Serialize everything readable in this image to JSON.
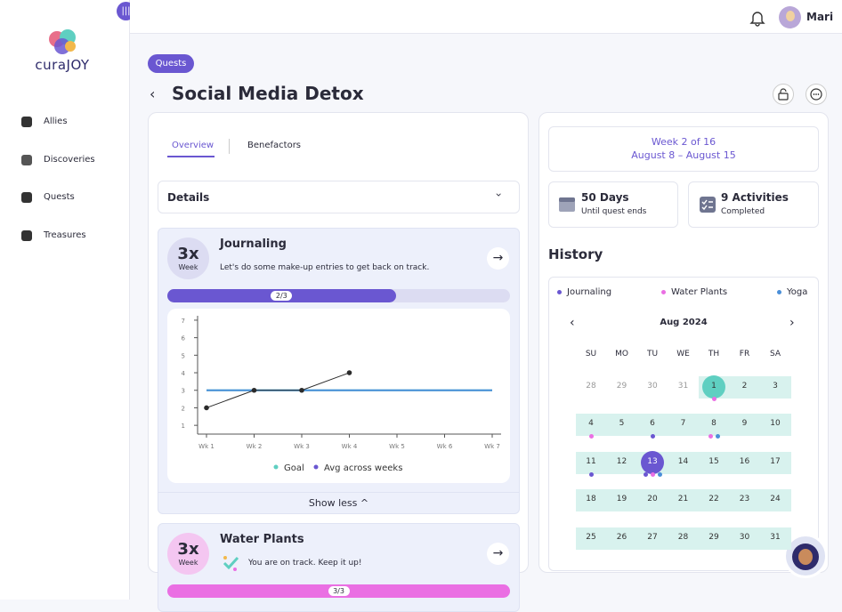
{
  "sidebar": {
    "logo": "curaJOY",
    "nav": [
      "Allies",
      "Discoveries",
      "Quests",
      "Treasures"
    ]
  },
  "header": {
    "user": "Mari"
  },
  "badge": "Quests",
  "title": "Social Media Detox",
  "tabs": [
    "Overview",
    "Benefactors"
  ],
  "details": "Details",
  "quests": [
    {
      "freq": "3x",
      "unit": "Week",
      "name": "Journaling",
      "message": "Let's do some make-up entries to get back on track.",
      "progress": {
        "done": 2,
        "total": 3,
        "label": "2/3"
      },
      "color": "#6a57d1",
      "circle": "#dcdcf2"
    },
    {
      "freq": "3x",
      "unit": "Week",
      "name": "Water Plants",
      "message": "You are on track. Keep it up!",
      "progress": {
        "done": 3,
        "total": 3,
        "label": "3/3"
      },
      "color": "#ea6fe3",
      "circle": "#f4c6f1"
    }
  ],
  "chart": {
    "type": "line",
    "categories": [
      "Wk 1",
      "Wk 2",
      "Wk 3",
      "Wk 4",
      "Wk 5",
      "Wk 6",
      "Wk 7"
    ],
    "entries": [
      2,
      3,
      3,
      4,
      null,
      null,
      null
    ],
    "entries_color": "#2b2b2b",
    "series": [
      {
        "name": "Goal",
        "color": "#5fcfc1",
        "values": [
          3,
          3,
          3,
          3,
          3,
          3,
          3
        ]
      },
      {
        "name": "Avg across weeks",
        "color": "#4a8fd8",
        "values": [
          3,
          3,
          3,
          3,
          3,
          3,
          3
        ]
      }
    ],
    "legend_colors": [
      "#5fcfc1",
      "#6a57d1"
    ],
    "ylim": [
      0.5,
      7.25
    ],
    "yticks": [
      1,
      2,
      3,
      4,
      5,
      6,
      7
    ]
  },
  "show_less": "Show less",
  "week": {
    "title": "Week 2 of 16",
    "range": "August 8 – August 15"
  },
  "stats": [
    {
      "value": "50 Days",
      "label": "Until quest ends"
    },
    {
      "value": "9 Activities",
      "label": "Completed"
    }
  ],
  "history": {
    "title": "History",
    "legend": [
      {
        "name": "Journaling",
        "color": "#6a57d1"
      },
      {
        "name": "Water Plants",
        "color": "#ea6fe3"
      },
      {
        "name": "Yoga",
        "color": "#4a8fd8"
      }
    ],
    "month": "Aug 2024",
    "weekdays": [
      "SU",
      "MO",
      "TU",
      "WE",
      "TH",
      "FR",
      "SA"
    ],
    "weeks": [
      [
        {
          "d": "28",
          "in": false
        },
        {
          "d": "29",
          "in": false
        },
        {
          "d": "30",
          "in": false
        },
        {
          "d": "31",
          "in": false
        },
        {
          "d": "1",
          "in": true,
          "circle": "#5fcfc1",
          "dots": [
            1
          ]
        },
        {
          "d": "2",
          "in": true
        },
        {
          "d": "3",
          "in": true
        }
      ],
      [
        {
          "d": "4",
          "in": true,
          "dots": [
            1
          ]
        },
        {
          "d": "5",
          "in": true
        },
        {
          "d": "6",
          "in": true,
          "dots": [
            0
          ]
        },
        {
          "d": "7",
          "in": true
        },
        {
          "d": "8",
          "in": true,
          "dots": [
            1,
            2
          ]
        },
        {
          "d": "9",
          "in": true
        },
        {
          "d": "10",
          "in": true
        }
      ],
      [
        {
          "d": "11",
          "in": true,
          "dots": [
            0
          ]
        },
        {
          "d": "12",
          "in": true
        },
        {
          "d": "13",
          "in": true,
          "circle": "#6a57d1",
          "dots": [
            0,
            1,
            2
          ]
        },
        {
          "d": "14",
          "in": true
        },
        {
          "d": "15",
          "in": true
        },
        {
          "d": "16",
          "in": true
        },
        {
          "d": "17",
          "in": true
        }
      ],
      [
        {
          "d": "18",
          "in": true
        },
        {
          "d": "19",
          "in": true
        },
        {
          "d": "20",
          "in": true
        },
        {
          "d": "21",
          "in": true
        },
        {
          "d": "22",
          "in": true
        },
        {
          "d": "23",
          "in": true
        },
        {
          "d": "24",
          "in": true
        }
      ],
      [
        {
          "d": "25",
          "in": true
        },
        {
          "d": "26",
          "in": true
        },
        {
          "d": "27",
          "in": true
        },
        {
          "d": "28",
          "in": true
        },
        {
          "d": "29",
          "in": true
        },
        {
          "d": "30",
          "in": true
        },
        {
          "d": "31",
          "in": true
        }
      ]
    ]
  }
}
